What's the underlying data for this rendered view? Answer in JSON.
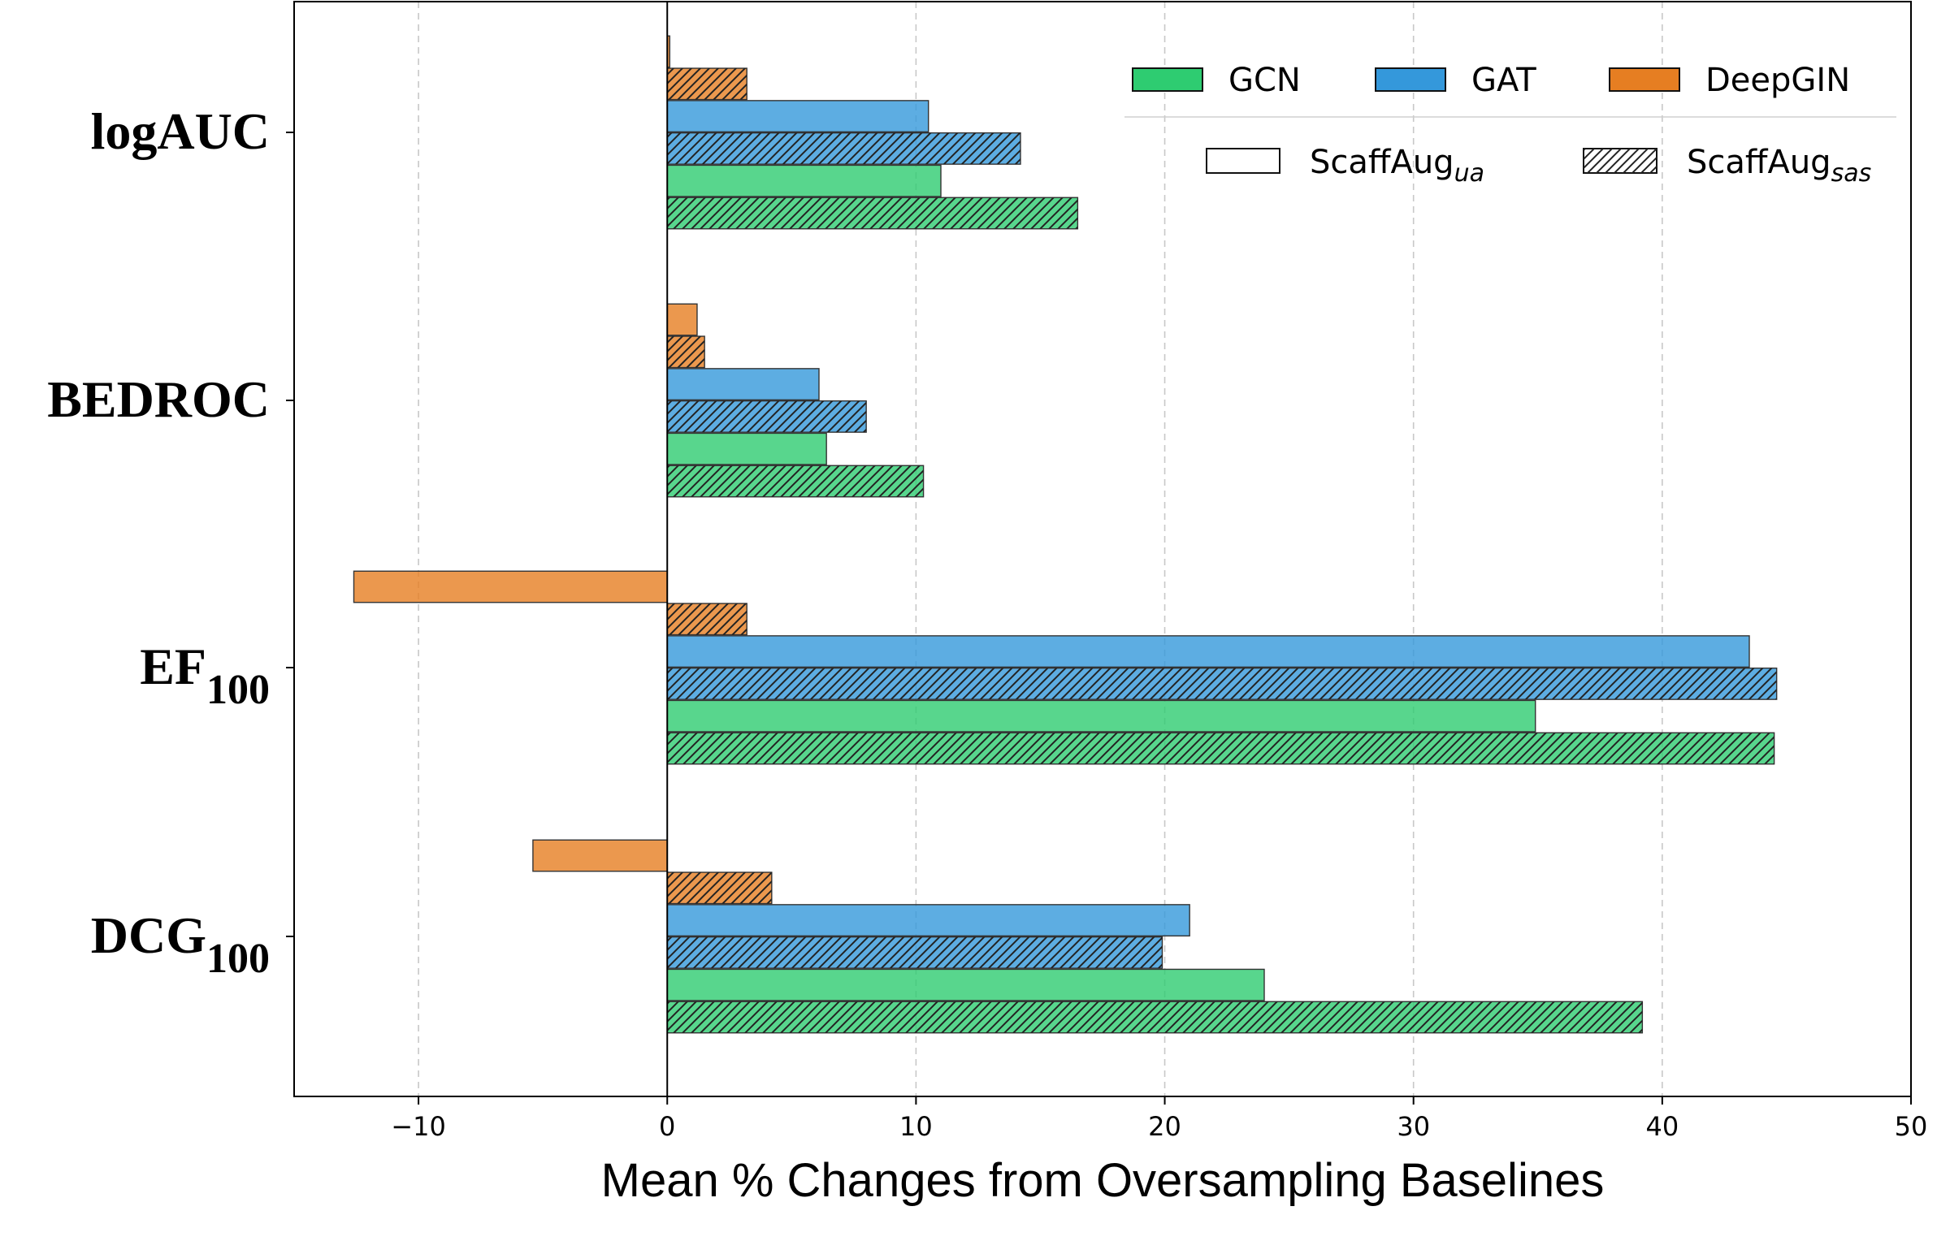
{
  "chart_data": {
    "type": "bar",
    "orientation": "horizontal",
    "xlabel": "Mean % Changes from Oversampling Baselines",
    "xlim": [
      -15,
      50
    ],
    "xticks": [
      -10,
      0,
      10,
      20,
      30,
      40,
      50
    ],
    "xtick_labels": [
      "−10",
      "0",
      "10",
      "20",
      "30",
      "40",
      "50"
    ],
    "grid": "vertical dashed",
    "categories": [
      {
        "base": "logAUC",
        "sub": ""
      },
      {
        "base": "BEDROC",
        "sub": ""
      },
      {
        "base": "EF",
        "sub": "100"
      },
      {
        "base": "DCG",
        "sub": "100"
      }
    ],
    "colors": {
      "GCN": "#2ecc71",
      "GAT": "#3498db",
      "DeepGIN": "#e67e22"
    },
    "series": [
      {
        "model": "DeepGIN",
        "method": "ScaffAug_ua",
        "hatched": false,
        "values": [
          0.1,
          1.2,
          -12.6,
          -5.4
        ]
      },
      {
        "model": "DeepGIN",
        "method": "ScaffAug_sas",
        "hatched": true,
        "values": [
          3.2,
          1.5,
          3.2,
          4.2
        ]
      },
      {
        "model": "GAT",
        "method": "ScaffAug_ua",
        "hatched": false,
        "values": [
          10.5,
          6.1,
          43.5,
          21.0
        ]
      },
      {
        "model": "GAT",
        "method": "ScaffAug_sas",
        "hatched": true,
        "values": [
          14.2,
          8.0,
          44.6,
          19.9
        ]
      },
      {
        "model": "GCN",
        "method": "ScaffAug_ua",
        "hatched": false,
        "values": [
          11.0,
          6.4,
          34.9,
          24.0
        ]
      },
      {
        "model": "GCN",
        "method": "ScaffAug_sas",
        "hatched": true,
        "values": [
          16.5,
          10.3,
          44.5,
          39.2
        ]
      }
    ],
    "legend": {
      "position": "top-right",
      "models": [
        "GCN",
        "GAT",
        "DeepGIN"
      ],
      "methods": [
        {
          "base": "ScaffAug",
          "sub": "ua",
          "hatched": false
        },
        {
          "base": "ScaffAug",
          "sub": "sas",
          "hatched": true
        }
      ]
    }
  }
}
